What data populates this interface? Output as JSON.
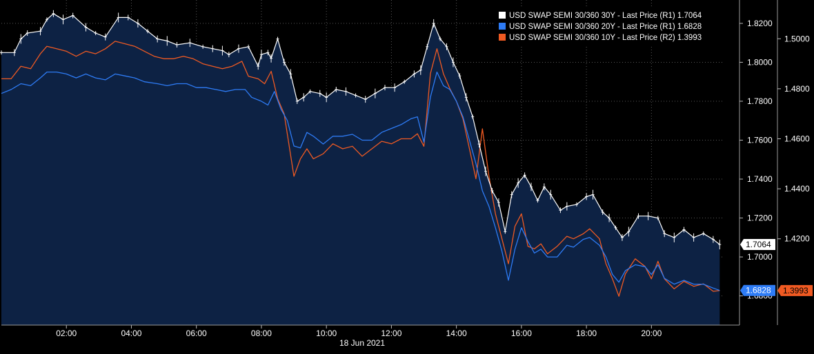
{
  "chart_data": {
    "type": "line",
    "date_label": "18 Jun 2021",
    "x_ticks": [
      "02:00",
      "04:00",
      "06:00",
      "08:00",
      "10:00",
      "12:00",
      "14:00",
      "16:00",
      "18:00",
      "20:00"
    ],
    "x_range": [
      0.0,
      22.2
    ],
    "axis_r1": {
      "ticks": [
        "1.6800",
        "1.7000",
        "1.7200",
        "1.7400",
        "1.7600",
        "1.7800",
        "1.8000",
        "1.8200"
      ],
      "range": [
        1.665,
        1.832
      ]
    },
    "axis_r2": {
      "ticks": [
        "1.4200",
        "1.4400",
        "1.4600",
        "1.4800",
        "1.5000"
      ],
      "range": [
        1.3855,
        1.5155
      ]
    },
    "legend_position": "top-right",
    "grid": true,
    "series": [
      {
        "name": "USD SWAP SEMI 30/360 30Y - Last Price (R1) 1.7064",
        "axis": "R1",
        "color": "#ffffff",
        "style": "bar-ticks",
        "last_label": "1.7064",
        "points": [
          [
            0.0,
            1.805
          ],
          [
            0.4,
            1.805
          ],
          [
            0.6,
            1.812
          ],
          [
            0.8,
            1.815
          ],
          [
            1.2,
            1.816
          ],
          [
            1.4,
            1.822
          ],
          [
            1.6,
            1.825
          ],
          [
            1.9,
            1.822
          ],
          [
            2.2,
            1.824
          ],
          [
            2.6,
            1.818
          ],
          [
            2.9,
            1.815
          ],
          [
            3.2,
            1.813
          ],
          [
            3.6,
            1.823
          ],
          [
            3.9,
            1.823
          ],
          [
            4.2,
            1.82
          ],
          [
            4.5,
            1.816
          ],
          [
            4.8,
            1.812
          ],
          [
            5.1,
            1.811
          ],
          [
            5.4,
            1.809
          ],
          [
            5.8,
            1.81
          ],
          [
            6.2,
            1.808
          ],
          [
            6.5,
            1.807
          ],
          [
            6.8,
            1.806
          ],
          [
            7.0,
            1.804
          ],
          [
            7.3,
            1.807
          ],
          [
            7.6,
            1.808
          ],
          [
            7.9,
            1.798
          ],
          [
            8.0,
            1.804
          ],
          [
            8.2,
            1.805
          ],
          [
            8.3,
            1.802
          ],
          [
            8.5,
            1.812
          ],
          [
            8.7,
            1.8
          ],
          [
            8.9,
            1.794
          ],
          [
            9.1,
            1.78
          ],
          [
            9.3,
            1.782
          ],
          [
            9.5,
            1.785
          ],
          [
            9.8,
            1.784
          ],
          [
            10.0,
            1.782
          ],
          [
            10.3,
            1.786
          ],
          [
            10.6,
            1.785
          ],
          [
            10.9,
            1.783
          ],
          [
            11.2,
            1.781
          ],
          [
            11.5,
            1.784
          ],
          [
            11.8,
            1.787
          ],
          [
            12.1,
            1.787
          ],
          [
            12.4,
            1.79
          ],
          [
            12.7,
            1.794
          ],
          [
            12.9,
            1.796
          ],
          [
            13.1,
            1.808
          ],
          [
            13.3,
            1.82
          ],
          [
            13.5,
            1.812
          ],
          [
            13.7,
            1.808
          ],
          [
            13.9,
            1.8
          ],
          [
            14.1,
            1.793
          ],
          [
            14.3,
            1.782
          ],
          [
            14.5,
            1.772
          ],
          [
            14.7,
            1.758
          ],
          [
            14.9,
            1.744
          ],
          [
            15.1,
            1.734
          ],
          [
            15.3,
            1.728
          ],
          [
            15.5,
            1.713
          ],
          [
            15.7,
            1.732
          ],
          [
            15.9,
            1.738
          ],
          [
            16.1,
            1.742
          ],
          [
            16.3,
            1.736
          ],
          [
            16.5,
            1.729
          ],
          [
            16.7,
            1.736
          ],
          [
            16.9,
            1.732
          ],
          [
            17.2,
            1.724
          ],
          [
            17.4,
            1.726
          ],
          [
            17.7,
            1.727
          ],
          [
            18.0,
            1.731
          ],
          [
            18.2,
            1.732
          ],
          [
            18.5,
            1.723
          ],
          [
            18.7,
            1.72
          ],
          [
            18.9,
            1.715
          ],
          [
            19.1,
            1.71
          ],
          [
            19.3,
            1.713
          ],
          [
            19.6,
            1.721
          ],
          [
            19.9,
            1.721
          ],
          [
            20.2,
            1.72
          ],
          [
            20.4,
            1.712
          ],
          [
            20.7,
            1.71
          ],
          [
            21.0,
            1.714
          ],
          [
            21.3,
            1.71
          ],
          [
            21.6,
            1.712
          ],
          [
            21.9,
            1.709
          ],
          [
            22.1,
            1.7064
          ]
        ]
      },
      {
        "name": "USD SWAP SEMI 30/360 20Y - Last Price (R1) 1.6828",
        "axis": "R1",
        "color": "#2e7cf6",
        "style": "line",
        "last_label": "1.6828",
        "points": [
          [
            0.0,
            1.784
          ],
          [
            0.3,
            1.786
          ],
          [
            0.6,
            1.789
          ],
          [
            0.9,
            1.788
          ],
          [
            1.2,
            1.792
          ],
          [
            1.4,
            1.795
          ],
          [
            1.7,
            1.795
          ],
          [
            2.0,
            1.794
          ],
          [
            2.3,
            1.792
          ],
          [
            2.6,
            1.794
          ],
          [
            2.9,
            1.792
          ],
          [
            3.2,
            1.791
          ],
          [
            3.5,
            1.794
          ],
          [
            3.8,
            1.793
          ],
          [
            4.1,
            1.792
          ],
          [
            4.4,
            1.79
          ],
          [
            4.8,
            1.789
          ],
          [
            5.1,
            1.788
          ],
          [
            5.4,
            1.789
          ],
          [
            5.7,
            1.789
          ],
          [
            6.0,
            1.787
          ],
          [
            6.3,
            1.787
          ],
          [
            6.6,
            1.786
          ],
          [
            6.9,
            1.785
          ],
          [
            7.2,
            1.786
          ],
          [
            7.5,
            1.786
          ],
          [
            7.7,
            1.782
          ],
          [
            8.0,
            1.78
          ],
          [
            8.2,
            1.778
          ],
          [
            8.4,
            1.785
          ],
          [
            8.6,
            1.776
          ],
          [
            8.8,
            1.77
          ],
          [
            9.0,
            1.757
          ],
          [
            9.2,
            1.756
          ],
          [
            9.4,
            1.764
          ],
          [
            9.6,
            1.762
          ],
          [
            9.9,
            1.758
          ],
          [
            10.2,
            1.762
          ],
          [
            10.5,
            1.762
          ],
          [
            10.8,
            1.763
          ],
          [
            11.1,
            1.76
          ],
          [
            11.4,
            1.76
          ],
          [
            11.7,
            1.764
          ],
          [
            12.0,
            1.766
          ],
          [
            12.3,
            1.768
          ],
          [
            12.6,
            1.771
          ],
          [
            12.8,
            1.772
          ],
          [
            13.0,
            1.759
          ],
          [
            13.2,
            1.782
          ],
          [
            13.4,
            1.795
          ],
          [
            13.6,
            1.788
          ],
          [
            13.8,
            1.786
          ],
          [
            14.0,
            1.78
          ],
          [
            14.2,
            1.772
          ],
          [
            14.4,
            1.76
          ],
          [
            14.6,
            1.748
          ],
          [
            14.8,
            1.734
          ],
          [
            15.0,
            1.726
          ],
          [
            15.2,
            1.715
          ],
          [
            15.4,
            1.703
          ],
          [
            15.6,
            1.688
          ],
          [
            15.8,
            1.704
          ],
          [
            16.0,
            1.715
          ],
          [
            16.2,
            1.708
          ],
          [
            16.4,
            1.702
          ],
          [
            16.6,
            1.704
          ],
          [
            16.8,
            1.7
          ],
          [
            17.1,
            1.7
          ],
          [
            17.4,
            1.706
          ],
          [
            17.6,
            1.705
          ],
          [
            17.9,
            1.709
          ],
          [
            18.1,
            1.71
          ],
          [
            18.4,
            1.706
          ],
          [
            18.6,
            1.7
          ],
          [
            18.8,
            1.691
          ],
          [
            19.0,
            1.687
          ],
          [
            19.2,
            1.693
          ],
          [
            19.5,
            1.696
          ],
          [
            19.8,
            1.695
          ],
          [
            20.0,
            1.691
          ],
          [
            20.2,
            1.696
          ],
          [
            20.4,
            1.689
          ],
          [
            20.7,
            1.686
          ],
          [
            21.0,
            1.688
          ],
          [
            21.3,
            1.686
          ],
          [
            21.6,
            1.686
          ],
          [
            21.9,
            1.684
          ],
          [
            22.1,
            1.6828
          ]
        ]
      },
      {
        "name": "USD SWAP SEMI 30/360 10Y - Last Price (R2) 1.3993",
        "axis": "R2",
        "color": "#f05a22",
        "style": "line",
        "last_label": "1.3993",
        "points": [
          [
            0.0,
            1.484
          ],
          [
            0.3,
            1.484
          ],
          [
            0.6,
            1.489
          ],
          [
            0.9,
            1.488
          ],
          [
            1.2,
            1.494
          ],
          [
            1.4,
            1.497
          ],
          [
            1.7,
            1.496
          ],
          [
            2.0,
            1.495
          ],
          [
            2.3,
            1.493
          ],
          [
            2.6,
            1.495
          ],
          [
            2.9,
            1.494
          ],
          [
            3.2,
            1.496
          ],
          [
            3.5,
            1.499
          ],
          [
            3.8,
            1.498
          ],
          [
            4.1,
            1.497
          ],
          [
            4.4,
            1.495
          ],
          [
            4.7,
            1.493
          ],
          [
            5.0,
            1.492
          ],
          [
            5.3,
            1.492
          ],
          [
            5.6,
            1.493
          ],
          [
            5.9,
            1.492
          ],
          [
            6.2,
            1.49
          ],
          [
            6.5,
            1.489
          ],
          [
            6.8,
            1.488
          ],
          [
            7.1,
            1.489
          ],
          [
            7.4,
            1.491
          ],
          [
            7.6,
            1.485
          ],
          [
            7.9,
            1.484
          ],
          [
            8.1,
            1.482
          ],
          [
            8.3,
            1.487
          ],
          [
            8.5,
            1.476
          ],
          [
            8.7,
            1.47
          ],
          [
            9.0,
            1.445
          ],
          [
            9.2,
            1.452
          ],
          [
            9.4,
            1.456
          ],
          [
            9.6,
            1.452
          ],
          [
            9.9,
            1.454
          ],
          [
            10.2,
            1.458
          ],
          [
            10.5,
            1.456
          ],
          [
            10.8,
            1.457
          ],
          [
            11.1,
            1.453
          ],
          [
            11.4,
            1.456
          ],
          [
            11.7,
            1.459
          ],
          [
            12.0,
            1.458
          ],
          [
            12.3,
            1.46
          ],
          [
            12.6,
            1.46
          ],
          [
            12.8,
            1.462
          ],
          [
            13.0,
            1.457
          ],
          [
            13.2,
            1.486
          ],
          [
            13.4,
            1.496
          ],
          [
            13.6,
            1.486
          ],
          [
            13.8,
            1.48
          ],
          [
            14.0,
            1.475
          ],
          [
            14.2,
            1.468
          ],
          [
            14.4,
            1.456
          ],
          [
            14.6,
            1.444
          ],
          [
            14.8,
            1.464
          ],
          [
            15.0,
            1.445
          ],
          [
            15.2,
            1.43
          ],
          [
            15.4,
            1.42
          ],
          [
            15.6,
            1.41
          ],
          [
            15.8,
            1.425
          ],
          [
            16.0,
            1.43
          ],
          [
            16.2,
            1.417
          ],
          [
            16.4,
            1.416
          ],
          [
            16.6,
            1.418
          ],
          [
            16.8,
            1.414
          ],
          [
            17.1,
            1.417
          ],
          [
            17.4,
            1.421
          ],
          [
            17.6,
            1.42
          ],
          [
            17.9,
            1.422
          ],
          [
            18.1,
            1.424
          ],
          [
            18.4,
            1.42
          ],
          [
            18.6,
            1.41
          ],
          [
            18.8,
            1.404
          ],
          [
            19.0,
            1.397
          ],
          [
            19.2,
            1.406
          ],
          [
            19.5,
            1.412
          ],
          [
            19.8,
            1.409
          ],
          [
            20.0,
            1.404
          ],
          [
            20.2,
            1.411
          ],
          [
            20.4,
            1.404
          ],
          [
            20.7,
            1.4
          ],
          [
            21.0,
            1.403
          ],
          [
            21.3,
            1.401
          ],
          [
            21.6,
            1.402
          ],
          [
            21.9,
            1.399
          ],
          [
            22.1,
            1.3993
          ]
        ]
      }
    ]
  }
}
